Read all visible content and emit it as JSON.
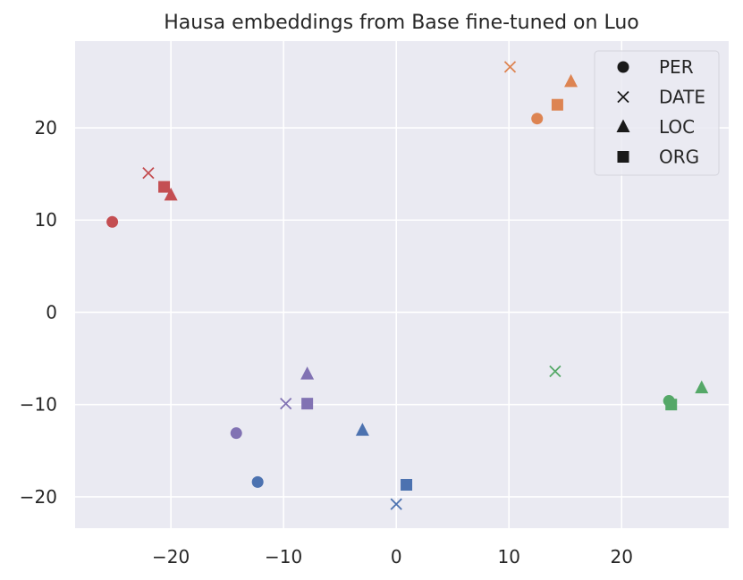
{
  "chart_data": {
    "type": "scatter",
    "title": "Hausa embeddings from Base fine-tuned on Luo",
    "xlabel": "",
    "ylabel": "",
    "xlim": [
      -28.5,
      29.5
    ],
    "ylim": [
      -23.4,
      29.4
    ],
    "xticks": [
      -20,
      -10,
      0,
      10,
      20
    ],
    "yticks": [
      -20,
      -10,
      0,
      10,
      20
    ],
    "xtick_labels": [
      "−20",
      "−10",
      "0",
      "10",
      "20"
    ],
    "ytick_labels": [
      "−20",
      "−10",
      "0",
      "10",
      "20"
    ],
    "grid": true,
    "background": "#eaeaf2",
    "legend": {
      "placement": "top-right",
      "entries": [
        {
          "label": "PER",
          "marker": "circle"
        },
        {
          "label": "DATE",
          "marker": "x"
        },
        {
          "label": "LOC",
          "marker": "triangle"
        },
        {
          "label": "ORG",
          "marker": "square"
        }
      ]
    },
    "groups": [
      {
        "color": "#4c72b0",
        "points": [
          {
            "type": "PER",
            "x": -12.3,
            "y": -18.4
          },
          {
            "type": "DATE",
            "x": 0.0,
            "y": -20.8
          },
          {
            "type": "LOC",
            "x": -3.0,
            "y": -12.8
          },
          {
            "type": "ORG",
            "x": 0.9,
            "y": -18.7
          }
        ]
      },
      {
        "color": "#dd8452",
        "points": [
          {
            "type": "PER",
            "x": 12.5,
            "y": 21.0
          },
          {
            "type": "DATE",
            "x": 10.1,
            "y": 26.6
          },
          {
            "type": "LOC",
            "x": 15.5,
            "y": 25.0
          },
          {
            "type": "ORG",
            "x": 14.3,
            "y": 22.5
          }
        ]
      },
      {
        "color": "#55a868",
        "points": [
          {
            "type": "PER",
            "x": 24.2,
            "y": -9.6
          },
          {
            "type": "DATE",
            "x": 14.1,
            "y": -6.4
          },
          {
            "type": "LOC",
            "x": 27.1,
            "y": -8.2
          },
          {
            "type": "ORG",
            "x": 24.4,
            "y": -10.0
          }
        ]
      },
      {
        "color": "#c44e52",
        "points": [
          {
            "type": "PER",
            "x": -25.2,
            "y": 9.8
          },
          {
            "type": "DATE",
            "x": -22.0,
            "y": 15.1
          },
          {
            "type": "LOC",
            "x": -20.0,
            "y": 12.7
          },
          {
            "type": "ORG",
            "x": -20.6,
            "y": 13.6
          }
        ]
      },
      {
        "color": "#8172b3",
        "points": [
          {
            "type": "PER",
            "x": -14.2,
            "y": -13.1
          },
          {
            "type": "DATE",
            "x": -9.8,
            "y": -9.9
          },
          {
            "type": "LOC",
            "x": -7.9,
            "y": -6.7
          },
          {
            "type": "ORG",
            "x": -7.9,
            "y": -9.9
          }
        ]
      }
    ]
  }
}
